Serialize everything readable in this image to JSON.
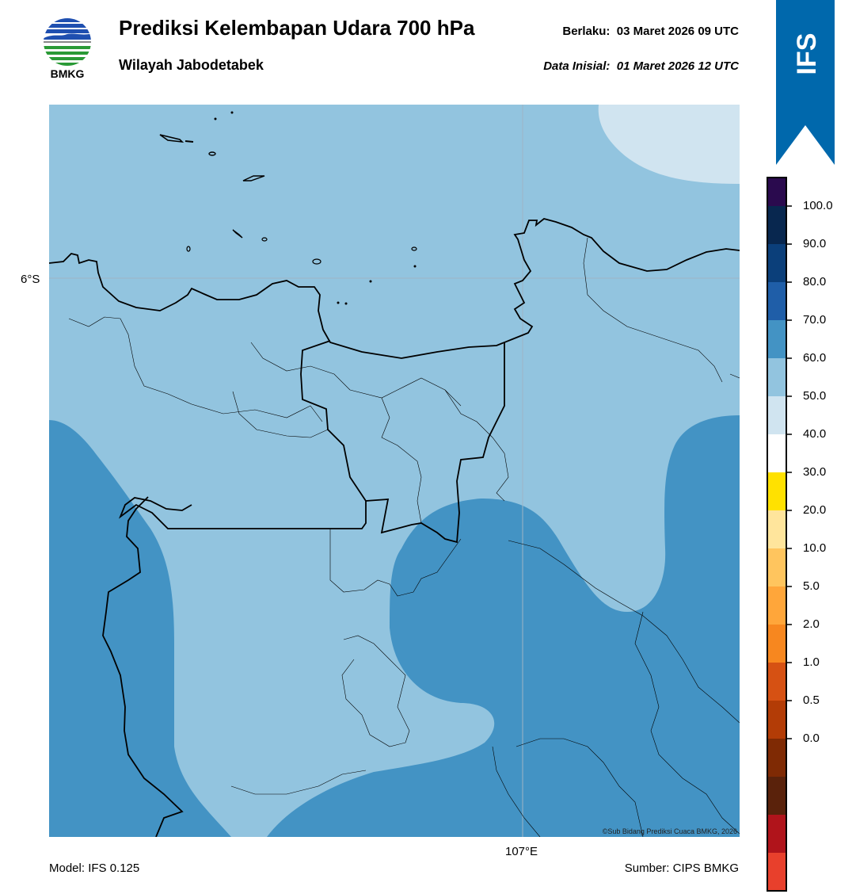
{
  "header": {
    "logo_text": "BMKG",
    "title": "Prediksi Kelembapan Udara 700 hPa",
    "subtitle": "Wilayah Jabodetabek",
    "valid_label": "Berlaku:",
    "valid_value": "03 Maret 2026 09 UTC",
    "init_label": "Data Inisial:",
    "init_value": "01 Maret 2026 12 UTC"
  },
  "ribbon": {
    "text": "IFS",
    "color": "#0068ac"
  },
  "map": {
    "lat_label": "6°S",
    "lon_label": "107°E",
    "credit": "©Sub Bidang Prediksi Cuaca BMKG, 2026",
    "colors": {
      "band_50_60": "#d0e4f0",
      "band_60_70": "#92c4df",
      "band_70_80": "#4393c4"
    }
  },
  "colorbar": {
    "ticks": [
      "100.0",
      "90.0",
      "80.0",
      "70.0",
      "60.0",
      "50.0",
      "40.0",
      "30.0",
      "20.0",
      "10.0",
      "5.0",
      "2.0",
      "1.0",
      "0.5",
      "0.0"
    ],
    "colors": [
      "#2a0a4e",
      "#08274f",
      "#0b3f7a",
      "#1f5ea8",
      "#4393c4",
      "#92c4df",
      "#d0e4f0",
      "#ffffff",
      "#ffe100",
      "#ffe59c",
      "#ffc55e",
      "#ffa63a",
      "#f7871f",
      "#d65113",
      "#b33c06",
      "#7f2a04",
      "#5a220b",
      "#b0141b",
      "#e8402c"
    ]
  },
  "footer": {
    "model": "Model: IFS 0.125",
    "source": "Sumber: CIPS BMKG"
  }
}
